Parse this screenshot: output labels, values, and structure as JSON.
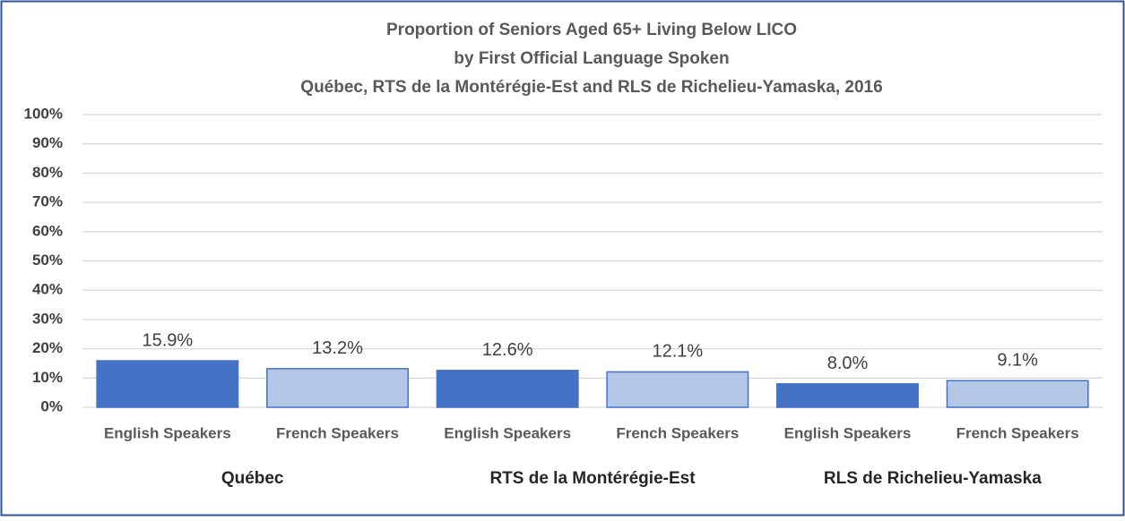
{
  "chart_data": {
    "type": "bar",
    "title": [
      "Proportion of Seniors Aged 65+ Living Below LICO",
      "by First Official Language Spoken",
      "Québec, RTS de la Montérégie-Est and RLS de Richelieu-Yamaska, 2016"
    ],
    "categories": [
      "English Speakers",
      "French Speakers",
      "English Speakers",
      "French Speakers",
      "English Speakers",
      "French Speakers"
    ],
    "groups": [
      "Québec",
      "RTS de la Montérégie-Est",
      "RLS de Richelieu-Yamaska"
    ],
    "values": [
      15.9,
      13.2,
      12.6,
      12.1,
      8.0,
      9.1
    ],
    "value_labels": [
      "15.9%",
      "13.2%",
      "12.6%",
      "12.1%",
      "8.0%",
      "9.1%"
    ],
    "colors": [
      "#4472c4",
      "#b4c7e7",
      "#4472c4",
      "#b4c7e7",
      "#4472c4",
      "#b4c7e7"
    ],
    "ylim": [
      0,
      100
    ],
    "yticks": [
      {
        "value": 0,
        "label": "0%"
      },
      {
        "value": 10,
        "label": "10%"
      },
      {
        "value": 20,
        "label": "20%"
      },
      {
        "value": 30,
        "label": "30%"
      },
      {
        "value": 40,
        "label": "40%"
      },
      {
        "value": 50,
        "label": "50%"
      },
      {
        "value": 60,
        "label": "60%"
      },
      {
        "value": 70,
        "label": "70%"
      },
      {
        "value": 80,
        "label": "80%"
      },
      {
        "value": 90,
        "label": "90%"
      },
      {
        "value": 100,
        "label": "100%"
      }
    ],
    "grid": true
  }
}
